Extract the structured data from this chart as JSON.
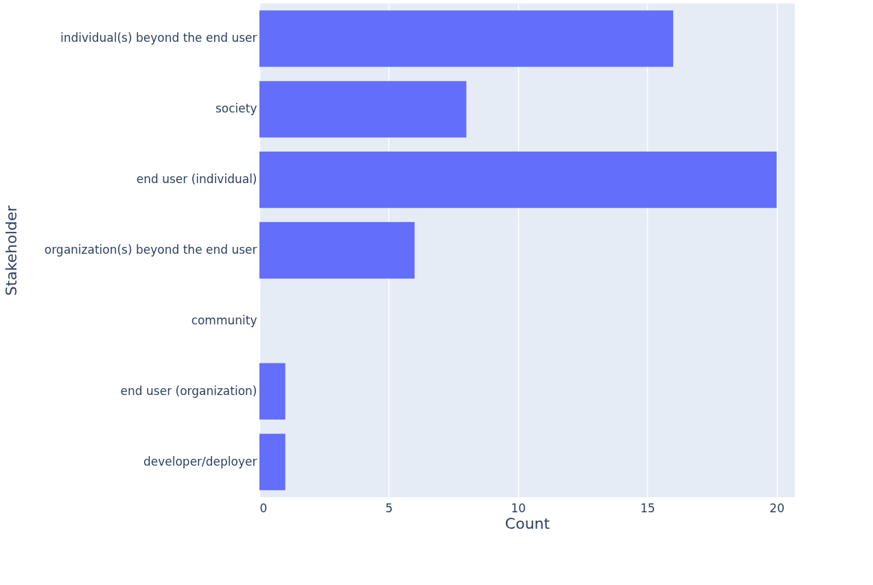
{
  "chart_data": {
    "type": "bar",
    "orientation": "horizontal",
    "xlabel": "Count",
    "ylabel": "Stakeholder",
    "categories": [
      "individual(s) beyond the end user",
      "society",
      "end user (individual)",
      "organization(s) beyond the end user",
      "community",
      "end user (organization)",
      "developer/deployer"
    ],
    "values": [
      16,
      8,
      20,
      6,
      0,
      1,
      1
    ],
    "color": "#636efa",
    "xlim": [
      0,
      20.7
    ],
    "xticks": [
      0,
      5,
      10,
      15,
      20
    ],
    "grid": "x"
  }
}
